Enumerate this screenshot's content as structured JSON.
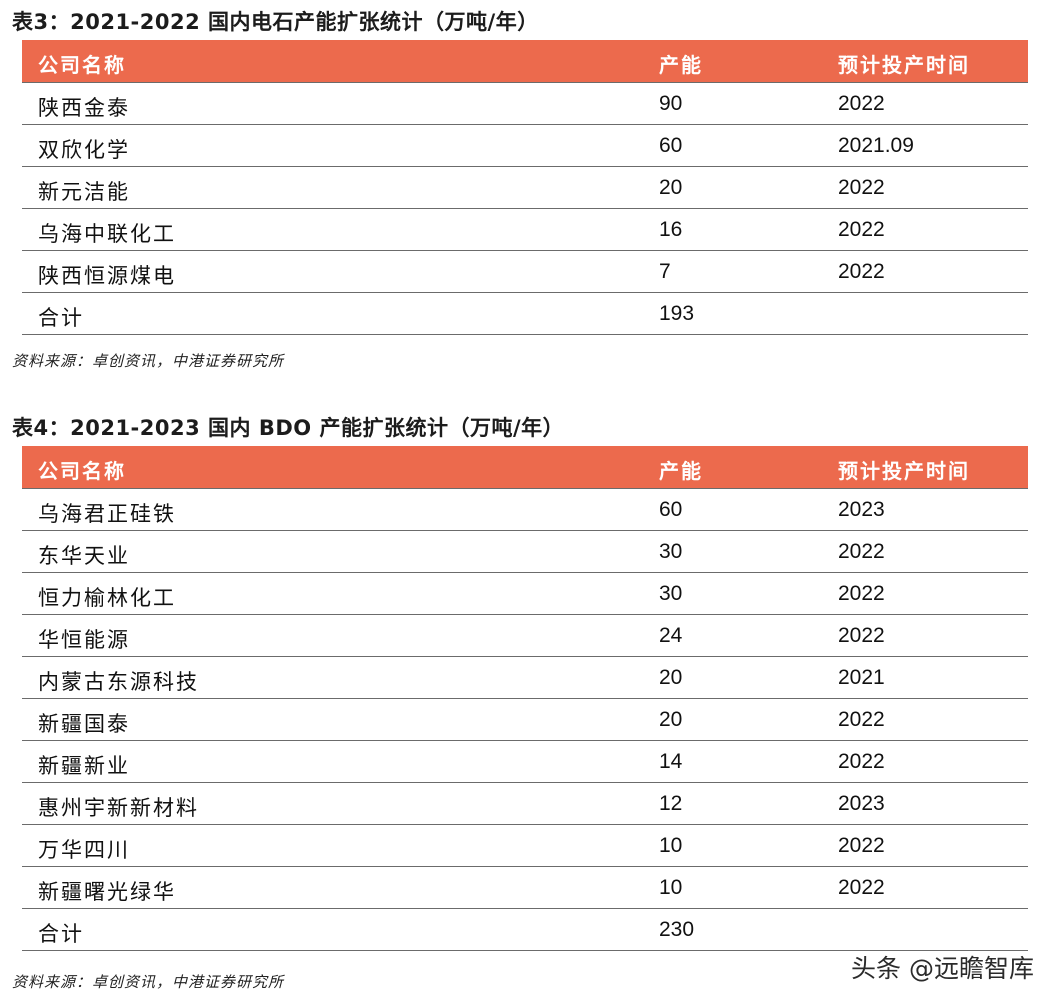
{
  "table3": {
    "title": "表3：2021-2022 国内电石产能扩张统计（万吨/年）",
    "headers": [
      "公司名称",
      "产能",
      "预计投产时间"
    ],
    "rows": [
      [
        "陕西金泰",
        "90",
        "2022"
      ],
      [
        "双欣化学",
        "60",
        "2021.09"
      ],
      [
        "新元洁能",
        "20",
        "2022"
      ],
      [
        "乌海中联化工",
        "16",
        "2022"
      ],
      [
        "陕西恒源煤电",
        "7",
        "2022"
      ],
      [
        "合计",
        "193",
        ""
      ]
    ],
    "source": "资料来源：卓创资讯，中港证券研究所"
  },
  "table4": {
    "title": "表4：2021-2023 国内 BDO 产能扩张统计（万吨/年）",
    "headers": [
      "公司名称",
      "产能",
      "预计投产时间"
    ],
    "rows": [
      [
        "乌海君正硅铁",
        "60",
        "2023"
      ],
      [
        "东华天业",
        "30",
        "2022"
      ],
      [
        "恒力榆林化工",
        "30",
        "2022"
      ],
      [
        "华恒能源",
        "24",
        "2022"
      ],
      [
        "内蒙古东源科技",
        "20",
        "2021"
      ],
      [
        "新疆国泰",
        "20",
        "2022"
      ],
      [
        "新疆新业",
        "14",
        "2022"
      ],
      [
        "惠州宇新新材料",
        "12",
        "2023"
      ],
      [
        "万华四川",
        "10",
        "2022"
      ],
      [
        "新疆曙光绿华",
        "10",
        "2022"
      ],
      [
        "合计",
        "230",
        ""
      ]
    ],
    "source": "资料来源：卓创资讯，中港证券研究所"
  },
  "watermark": "头条 @远瞻智库",
  "colors": {
    "header_bg": "#ec6a4d",
    "header_text": "#ffffff",
    "rule": "#6b6b6b"
  }
}
